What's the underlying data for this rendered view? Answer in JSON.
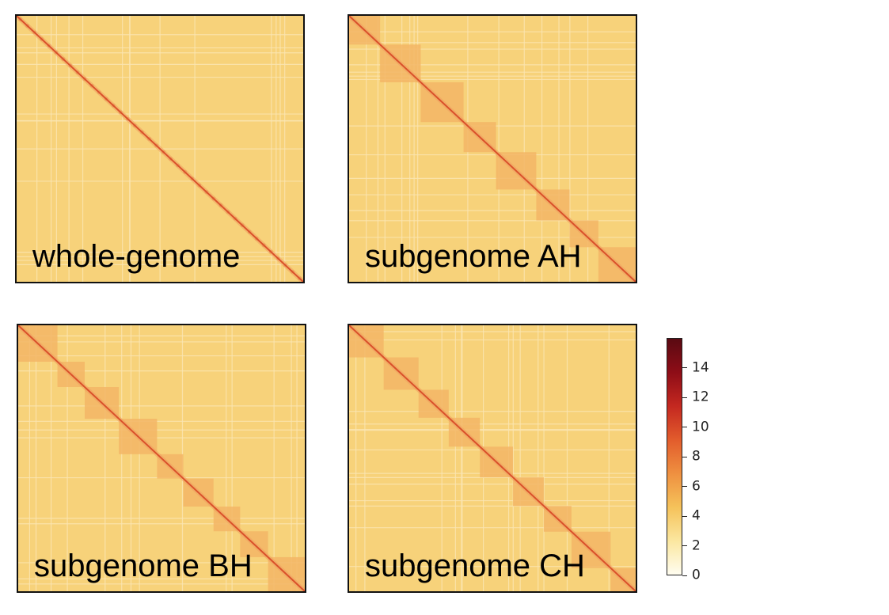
{
  "chart_data": [
    {
      "type": "heatmap",
      "label": "whole-genome",
      "block_count": 0,
      "map_background": "#f7d27a",
      "diagonal_color": "#d9502a"
    },
    {
      "type": "heatmap",
      "label": "subgenome AH",
      "block_count": 8,
      "map_background": "#f7d27a",
      "block_color": "#f3b666",
      "diagonal_color": "#d9502a"
    },
    {
      "type": "heatmap",
      "label": "subgenome BH",
      "block_count": 9,
      "map_background": "#f7d27a",
      "block_color": "#f3b666",
      "diagonal_color": "#d9502a"
    },
    {
      "type": "heatmap",
      "label": "subgenome CH",
      "block_count": 9,
      "map_background": "#f7d27a",
      "block_color": "#f3b666",
      "diagonal_color": "#d9502a"
    }
  ],
  "colorbar": {
    "min": 0,
    "max": 16,
    "ticks": [
      "0",
      "2",
      "4",
      "6",
      "8",
      "10",
      "12",
      "14"
    ],
    "gradient": [
      "#fffdf0",
      "#fbe7a0",
      "#f5c25a",
      "#ef9040",
      "#e25c2c",
      "#c42820",
      "#8e0d17",
      "#5a0a12"
    ]
  }
}
